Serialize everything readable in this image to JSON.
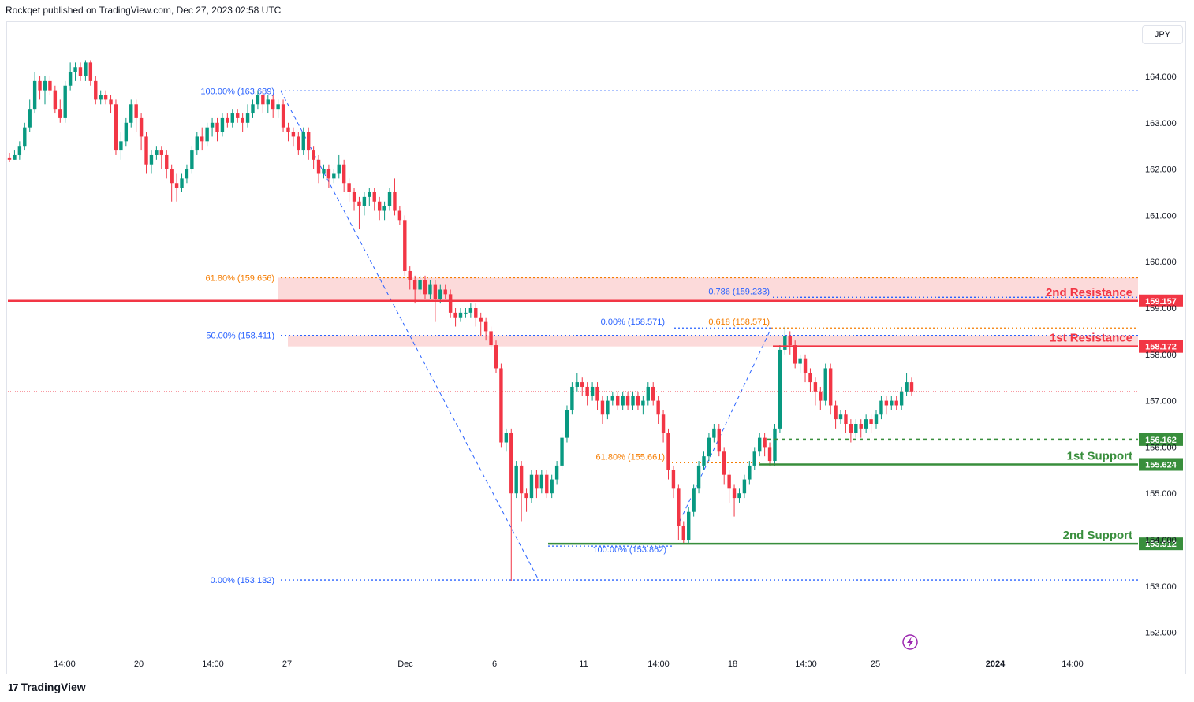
{
  "header": {
    "text": "Rockqet published on TradingView.com, Dec 27, 2023 02:58 UTC"
  },
  "footer": {
    "brand": "TradingView",
    "logo": "tradingview-logo-icon"
  },
  "axis": {
    "currency": "JPY"
  },
  "chart_data": {
    "type": "candlestick",
    "y_ticks": [
      "164.000",
      "163.000",
      "162.000",
      "161.000",
      "160.000",
      "159.000",
      "158.000",
      "157.000",
      "156.000",
      "155.000",
      "154.000",
      "153.000",
      "152.000"
    ],
    "y_tick_values": [
      164,
      163,
      162,
      161,
      160,
      159,
      158,
      157,
      156,
      155,
      154,
      153,
      152
    ],
    "x_ticks": [
      "14:00",
      "20",
      "14:00",
      "27",
      "Dec",
      "6",
      "11",
      "14:00",
      "18",
      "14:00",
      "25",
      "2024",
      "14:00"
    ],
    "ylim": [
      151.5,
      165.2
    ],
    "candles": [
      [
        162.25,
        162.2,
        162.35,
        162.15
      ],
      [
        162.2,
        162.3,
        162.4,
        162.2
      ],
      [
        162.3,
        162.5,
        162.6,
        162.2
      ],
      [
        162.5,
        162.9,
        163.0,
        162.4
      ],
      [
        162.9,
        163.3,
        163.5,
        162.8
      ],
      [
        163.3,
        163.9,
        164.1,
        163.2
      ],
      [
        163.9,
        163.7,
        164.0,
        163.5
      ],
      [
        163.7,
        163.9,
        164.0,
        163.4
      ],
      [
        163.9,
        163.7,
        164.0,
        163.6
      ],
      [
        163.7,
        163.3,
        163.8,
        163.2
      ],
      [
        163.3,
        163.1,
        163.5,
        163.0
      ],
      [
        163.1,
        163.8,
        163.9,
        163.0
      ],
      [
        163.8,
        164.1,
        164.3,
        163.7
      ],
      [
        164.1,
        164.2,
        164.3,
        163.9
      ],
      [
        164.2,
        164.0,
        164.3,
        163.9
      ],
      [
        164.0,
        164.3,
        164.35,
        163.9
      ],
      [
        164.3,
        163.9,
        164.35,
        163.8
      ],
      [
        163.9,
        163.5,
        164.0,
        163.4
      ],
      [
        163.5,
        163.6,
        163.7,
        163.4
      ],
      [
        163.6,
        163.5,
        163.7,
        163.4
      ],
      [
        163.5,
        163.4,
        163.6,
        163.2
      ],
      [
        163.4,
        162.4,
        163.5,
        162.3
      ],
      [
        162.4,
        162.6,
        162.8,
        162.2
      ],
      [
        162.6,
        163.0,
        163.1,
        162.5
      ],
      [
        163.0,
        163.4,
        163.5,
        162.9
      ],
      [
        163.4,
        163.1,
        163.5,
        162.8
      ],
      [
        163.1,
        162.7,
        163.2,
        162.4
      ],
      [
        162.7,
        162.1,
        162.8,
        161.9
      ],
      [
        162.1,
        162.3,
        162.4,
        161.9
      ],
      [
        162.3,
        162.4,
        162.5,
        162.2
      ],
      [
        162.4,
        162.3,
        162.5,
        162.0
      ],
      [
        162.3,
        162.0,
        162.4,
        161.8
      ],
      [
        162.0,
        161.7,
        162.1,
        161.3
      ],
      [
        161.7,
        161.6,
        161.9,
        161.3
      ],
      [
        161.6,
        161.8,
        161.9,
        161.5
      ],
      [
        161.8,
        162.0,
        162.1,
        161.7
      ],
      [
        162.0,
        162.4,
        162.5,
        161.9
      ],
      [
        162.4,
        162.7,
        162.8,
        162.3
      ],
      [
        162.7,
        162.6,
        162.9,
        162.4
      ],
      [
        162.6,
        162.9,
        163.0,
        162.5
      ],
      [
        162.9,
        163.0,
        163.1,
        162.7
      ],
      [
        163.0,
        162.8,
        163.1,
        162.6
      ],
      [
        162.8,
        163.1,
        163.2,
        162.7
      ],
      [
        163.1,
        163.0,
        163.2,
        162.9
      ],
      [
        163.0,
        163.2,
        163.3,
        162.9
      ],
      [
        163.2,
        163.1,
        163.3,
        163.0
      ],
      [
        163.1,
        163.0,
        163.2,
        162.8
      ],
      [
        163.0,
        163.2,
        163.4,
        162.9
      ],
      [
        163.2,
        163.4,
        163.5,
        163.1
      ],
      [
        163.4,
        163.6,
        163.7,
        163.3
      ],
      [
        163.6,
        163.4,
        163.7,
        163.2
      ],
      [
        163.4,
        163.5,
        163.6,
        163.2
      ],
      [
        163.5,
        163.3,
        163.6,
        163.1
      ],
      [
        163.3,
        163.4,
        163.5,
        163.1
      ],
      [
        163.4,
        162.9,
        163.5,
        162.8
      ],
      [
        162.9,
        162.8,
        163.0,
        162.6
      ],
      [
        162.8,
        162.7,
        162.9,
        162.5
      ],
      [
        162.7,
        162.4,
        162.8,
        162.3
      ],
      [
        162.4,
        162.8,
        162.9,
        162.3
      ],
      [
        162.8,
        162.4,
        162.9,
        162.2
      ],
      [
        162.4,
        162.2,
        162.5,
        162.0
      ],
      [
        162.2,
        161.9,
        162.3,
        161.7
      ],
      [
        161.9,
        162.0,
        162.1,
        161.8
      ],
      [
        162.0,
        161.8,
        162.1,
        161.6
      ],
      [
        161.8,
        161.9,
        162.0,
        161.7
      ],
      [
        161.9,
        162.1,
        162.3,
        161.8
      ],
      [
        162.1,
        161.7,
        162.2,
        161.5
      ],
      [
        161.7,
        161.5,
        161.8,
        161.3
      ],
      [
        161.5,
        161.3,
        161.6,
        161.1
      ],
      [
        161.3,
        161.2,
        161.4,
        160.7
      ],
      [
        161.2,
        161.4,
        161.5,
        161.0
      ],
      [
        161.4,
        161.5,
        161.6,
        161.2
      ],
      [
        161.5,
        161.3,
        161.6,
        161.1
      ],
      [
        161.3,
        161.1,
        161.4,
        160.9
      ],
      [
        161.1,
        161.2,
        161.3,
        160.9
      ],
      [
        161.2,
        161.5,
        161.6,
        161.1
      ],
      [
        161.5,
        161.1,
        161.8,
        161.0
      ],
      [
        161.1,
        160.9,
        161.2,
        160.8
      ],
      [
        160.9,
        159.8,
        161.0,
        159.7
      ],
      [
        159.8,
        159.6,
        159.9,
        159.4
      ],
      [
        159.6,
        159.4,
        159.7,
        159.1
      ],
      [
        159.4,
        159.6,
        159.7,
        159.3
      ],
      [
        159.6,
        159.3,
        159.7,
        159.2
      ],
      [
        159.3,
        159.5,
        159.6,
        159.2
      ],
      [
        159.5,
        159.2,
        159.6,
        158.7
      ],
      [
        159.2,
        159.4,
        159.5,
        159.1
      ],
      [
        159.4,
        159.3,
        159.5,
        159.2
      ],
      [
        159.3,
        158.9,
        159.4,
        158.8
      ],
      [
        158.9,
        158.8,
        159.0,
        158.6
      ],
      [
        158.8,
        158.9,
        159.0,
        158.7
      ],
      [
        158.9,
        158.9,
        159.0,
        158.8
      ],
      [
        158.9,
        159.0,
        159.1,
        158.8
      ],
      [
        159.0,
        158.8,
        159.1,
        158.6
      ],
      [
        158.8,
        158.7,
        158.9,
        158.4
      ],
      [
        158.7,
        158.5,
        158.8,
        158.3
      ],
      [
        158.5,
        158.2,
        158.6,
        158.1
      ],
      [
        158.2,
        157.7,
        158.3,
        157.6
      ],
      [
        157.7,
        156.1,
        157.8,
        156.0
      ],
      [
        156.1,
        156.3,
        156.4,
        155.9
      ],
      [
        156.3,
        155.0,
        156.4,
        153.1
      ],
      [
        155.0,
        155.6,
        155.7,
        154.9
      ],
      [
        155.6,
        155.0,
        155.7,
        154.4
      ],
      [
        155.0,
        154.9,
        155.1,
        154.6
      ],
      [
        154.9,
        155.4,
        155.5,
        154.8
      ],
      [
        155.4,
        155.1,
        155.5,
        154.9
      ],
      [
        155.1,
        155.4,
        155.5,
        155.0
      ],
      [
        155.4,
        155.0,
        155.5,
        154.9
      ],
      [
        155.0,
        155.3,
        155.4,
        154.9
      ],
      [
        155.3,
        155.6,
        155.7,
        155.2
      ],
      [
        155.6,
        156.2,
        156.3,
        155.5
      ],
      [
        156.2,
        156.8,
        156.9,
        156.1
      ],
      [
        156.8,
        157.3,
        157.4,
        156.7
      ],
      [
        157.3,
        157.4,
        157.6,
        157.2
      ],
      [
        157.4,
        157.3,
        157.5,
        157.1
      ],
      [
        157.3,
        157.1,
        157.4,
        156.9
      ],
      [
        157.1,
        157.3,
        157.4,
        157.0
      ],
      [
        157.3,
        157.0,
        157.4,
        156.8
      ],
      [
        157.0,
        156.7,
        157.1,
        156.5
      ],
      [
        156.7,
        157.0,
        157.1,
        156.6
      ],
      [
        157.0,
        157.1,
        157.2,
        156.9
      ],
      [
        157.1,
        156.9,
        157.2,
        156.8
      ],
      [
        156.9,
        157.1,
        157.2,
        156.8
      ],
      [
        157.1,
        156.9,
        157.2,
        156.8
      ],
      [
        156.9,
        157.1,
        157.2,
        156.8
      ],
      [
        157.1,
        156.9,
        157.2,
        156.8
      ],
      [
        156.9,
        157.0,
        157.1,
        156.7
      ],
      [
        157.0,
        157.3,
        157.4,
        156.9
      ],
      [
        157.3,
        157.0,
        157.4,
        156.9
      ],
      [
        157.0,
        156.7,
        157.1,
        156.5
      ],
      [
        156.7,
        156.3,
        156.8,
        156.1
      ],
      [
        156.3,
        155.5,
        156.4,
        155.3
      ],
      [
        155.5,
        155.1,
        155.6,
        154.9
      ],
      [
        155.1,
        154.3,
        155.2,
        154.0
      ],
      [
        154.3,
        154.0,
        154.4,
        153.9
      ],
      [
        154.0,
        154.6,
        154.7,
        153.9
      ],
      [
        154.6,
        155.1,
        155.2,
        154.5
      ],
      [
        155.1,
        155.6,
        155.7,
        155.0
      ],
      [
        155.6,
        155.8,
        155.9,
        155.5
      ],
      [
        155.8,
        156.2,
        156.3,
        155.7
      ],
      [
        156.2,
        156.4,
        156.5,
        156.1
      ],
      [
        156.4,
        155.9,
        156.5,
        155.8
      ],
      [
        155.9,
        155.4,
        156.0,
        155.2
      ],
      [
        155.4,
        155.1,
        155.5,
        154.8
      ],
      [
        155.1,
        154.9,
        155.2,
        154.5
      ],
      [
        154.9,
        155.0,
        155.1,
        154.8
      ],
      [
        155.0,
        155.3,
        155.4,
        154.9
      ],
      [
        155.3,
        155.6,
        155.7,
        155.2
      ],
      [
        155.6,
        155.9,
        156.0,
        155.5
      ],
      [
        155.9,
        156.2,
        156.3,
        155.8
      ],
      [
        156.2,
        156.0,
        156.3,
        155.8
      ],
      [
        156.0,
        155.7,
        156.1,
        155.6
      ],
      [
        155.7,
        156.4,
        156.5,
        155.6
      ],
      [
        156.4,
        158.1,
        158.2,
        156.3
      ],
      [
        158.1,
        158.4,
        158.6,
        158.0
      ],
      [
        158.4,
        158.2,
        158.5,
        158.0
      ],
      [
        158.2,
        157.8,
        158.3,
        157.7
      ],
      [
        157.8,
        157.9,
        158.0,
        157.6
      ],
      [
        157.9,
        157.6,
        158.0,
        157.4
      ],
      [
        157.6,
        157.4,
        157.7,
        157.2
      ],
      [
        157.4,
        157.2,
        157.5,
        156.9
      ],
      [
        157.2,
        157.0,
        157.3,
        156.8
      ],
      [
        157.0,
        157.7,
        157.8,
        156.9
      ],
      [
        157.7,
        156.9,
        157.8,
        156.7
      ],
      [
        156.9,
        156.6,
        157.0,
        156.4
      ],
      [
        156.6,
        156.7,
        156.8,
        156.5
      ],
      [
        156.7,
        156.5,
        156.8,
        156.3
      ],
      [
        156.5,
        156.3,
        156.6,
        156.1
      ],
      [
        156.3,
        156.5,
        156.6,
        156.2
      ],
      [
        156.5,
        156.4,
        156.6,
        156.2
      ],
      [
        156.4,
        156.6,
        156.7,
        156.3
      ],
      [
        156.6,
        156.5,
        156.7,
        156.3
      ],
      [
        156.5,
        156.7,
        156.8,
        156.4
      ],
      [
        156.7,
        157.0,
        157.1,
        156.6
      ],
      [
        157.0,
        156.9,
        157.1,
        156.7
      ],
      [
        156.9,
        157.0,
        157.1,
        156.8
      ],
      [
        157.0,
        156.9,
        157.1,
        156.8
      ],
      [
        156.9,
        157.2,
        157.3,
        156.8
      ],
      [
        157.2,
        157.4,
        157.6,
        157.1
      ],
      [
        157.4,
        157.2,
        157.5,
        157.1
      ]
    ],
    "levels": [
      {
        "name": "2nd Resistance",
        "value": "159.157",
        "price": 159.157,
        "color": "#f23645"
      },
      {
        "name": "1st Resistance",
        "value": "158.172",
        "price": 158.172,
        "color": "#f23645"
      },
      {
        "name": "1st Support",
        "value": "155.624",
        "price": 155.624,
        "color": "#388e3c"
      },
      {
        "name": "2nd Support",
        "value": "153.912",
        "price": 153.912,
        "color": "#388e3c"
      }
    ],
    "support_dotted": {
      "value": "156.162",
      "price": 156.162
    },
    "fib_main": [
      {
        "label": "100.00% (163.689)",
        "price": 163.689,
        "color": "#2962ff"
      },
      {
        "label": "61.80% (159.656)",
        "price": 159.656,
        "color": "#f57c00"
      },
      {
        "label": "50.00% (158.411)",
        "price": 158.411,
        "color": "#2962ff"
      },
      {
        "label": "0.00% (153.132)",
        "price": 153.132,
        "color": "#2962ff"
      }
    ],
    "fib_second": [
      {
        "label": "0.786 (159.233)",
        "price": 159.233,
        "color": "#2962ff"
      },
      {
        "label": "0.618 (158.571)",
        "price": 158.571,
        "color": "#f57c00"
      },
      {
        "label": "0.00% (158.571)",
        "price": 158.571,
        "color": "#2962ff"
      },
      {
        "label": "61.80% (155.661)",
        "price": 155.661,
        "color": "#f57c00"
      },
      {
        "label": "100.00% (153.862)",
        "price": 153.862,
        "color": "#2962ff"
      }
    ],
    "zones": [
      {
        "top": 159.656,
        "bottom": 159.157
      },
      {
        "top": 158.411,
        "bottom": 158.172
      }
    ],
    "last_price": 157.2,
    "colors": {
      "up": "#089981",
      "down": "#f23645",
      "resistance": "#f23645",
      "support": "#388e3c",
      "fib_blue": "#2962ff",
      "fib_orange": "#f57c00",
      "zone": "#fcd4d4"
    }
  }
}
